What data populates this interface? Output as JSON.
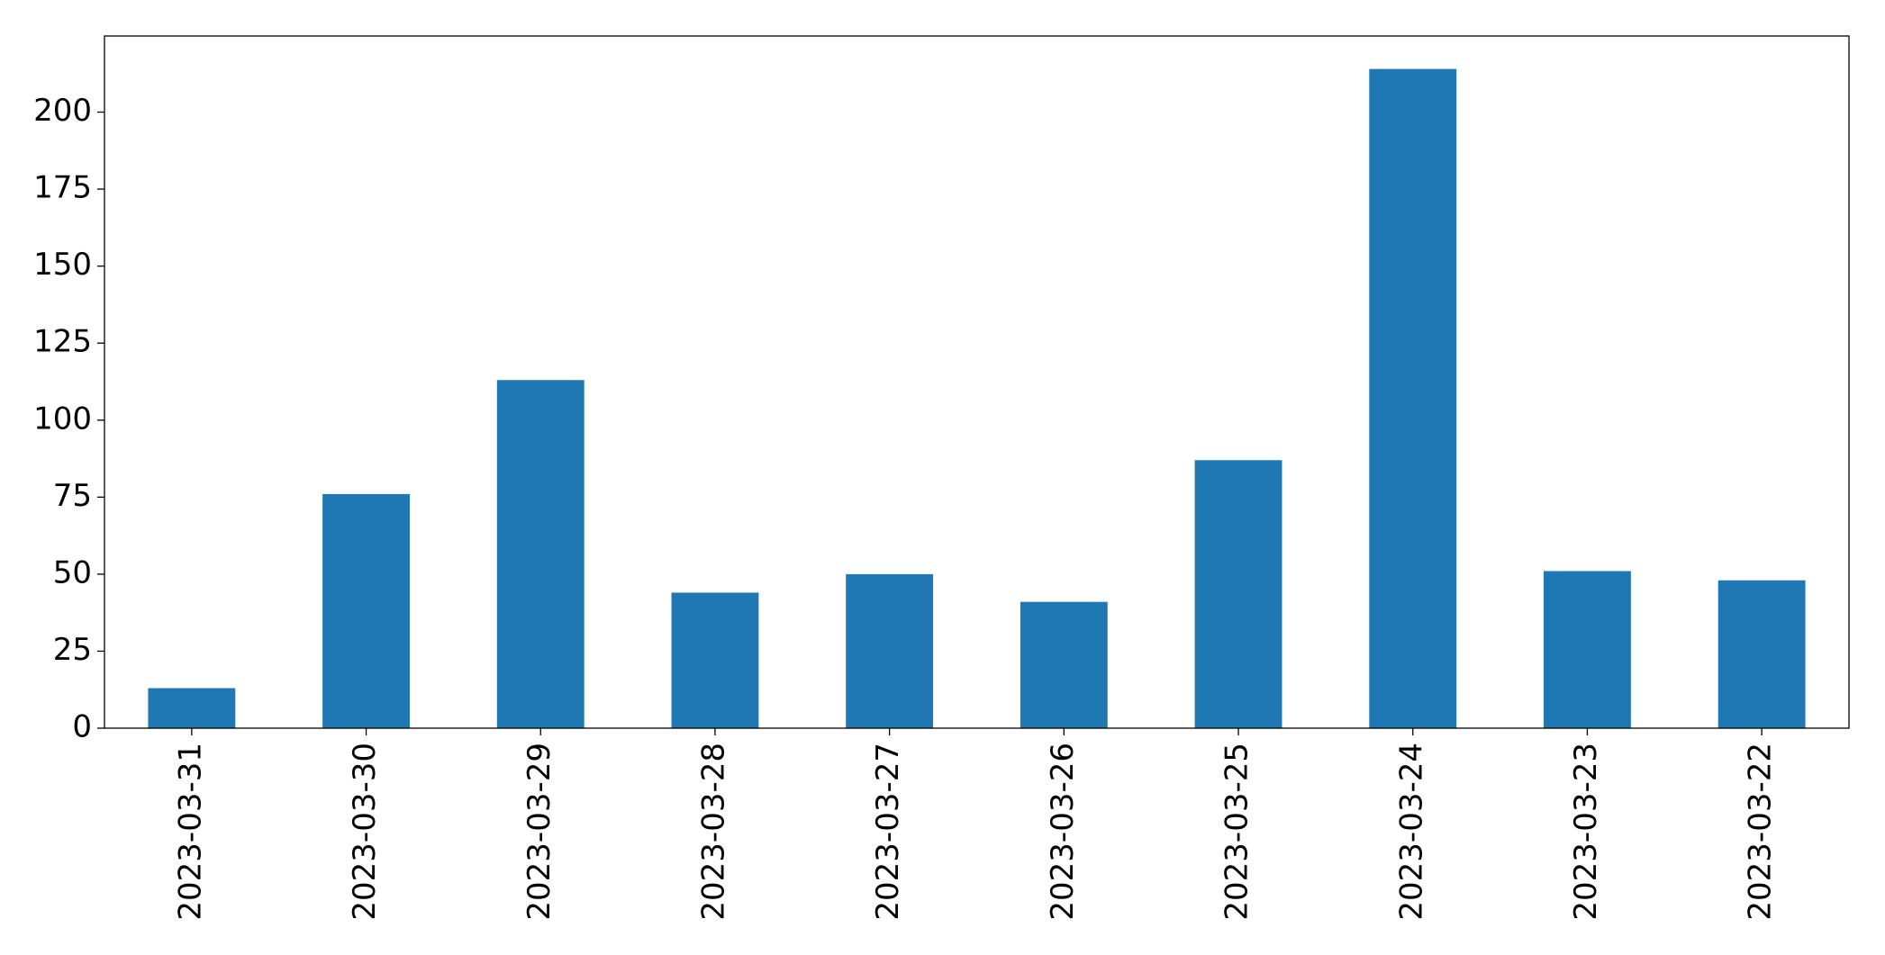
{
  "chart_data": {
    "type": "bar",
    "categories": [
      "2023-03-31",
      "2023-03-30",
      "2023-03-29",
      "2023-03-28",
      "2023-03-27",
      "2023-03-26",
      "2023-03-25",
      "2023-03-24",
      "2023-03-23",
      "2023-03-22"
    ],
    "values": [
      13,
      76,
      113,
      44,
      50,
      41,
      87,
      214,
      51,
      48
    ],
    "color": "#1f77b4",
    "ylim": [
      0,
      224.7
    ],
    "yticks": [
      0,
      25,
      50,
      75,
      100,
      125,
      150,
      175,
      200
    ],
    "grid": false
  }
}
